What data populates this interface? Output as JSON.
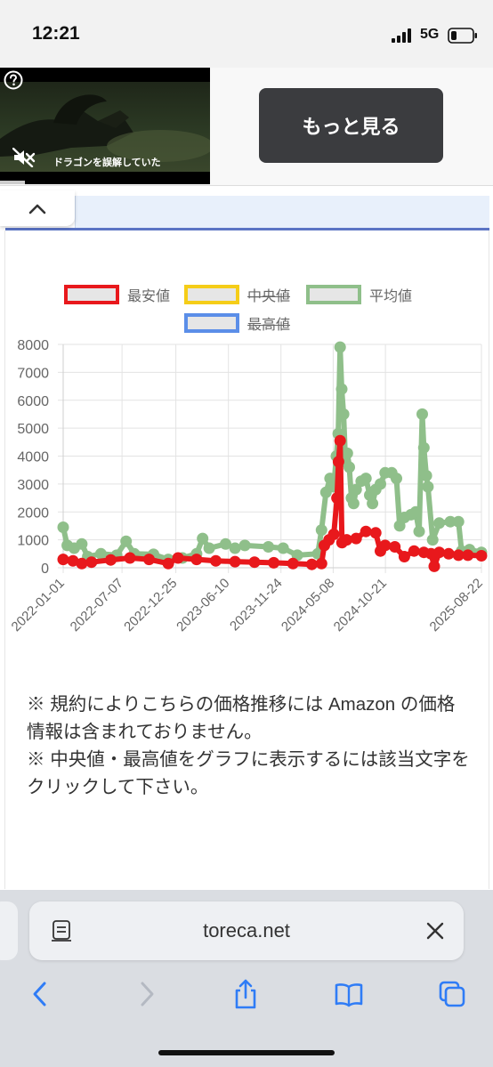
{
  "status_bar": {
    "time": "12:21",
    "network": "5G"
  },
  "ad": {
    "caption": "ドラゴンを誤解していた",
    "more_button": "もっと見る"
  },
  "legend": [
    {
      "label": "最安値",
      "color": "#e8181c",
      "hidden": false
    },
    {
      "label": "中央値",
      "color": "#f5cd18",
      "hidden": true
    },
    {
      "label": "平均値",
      "color": "#8fbf8a",
      "hidden": false
    },
    {
      "label": "最高値",
      "color": "#5b8ee8",
      "hidden": true
    }
  ],
  "chart_data": {
    "type": "line",
    "x_ticks": [
      "2022-01-01",
      "2022-07-07",
      "2022-12-25",
      "2023-06-10",
      "2023-11-24",
      "2024-05-08",
      "2024-10-21",
      "2025-08-22"
    ],
    "y_ticks": [
      0,
      1000,
      2000,
      3000,
      4000,
      5000,
      6000,
      7000,
      8000
    ],
    "ylim": [
      0,
      8000
    ],
    "grid": true,
    "series": [
      {
        "name": "平均値",
        "color": "#8fbf8a",
        "points": [
          [
            "2022-01-01",
            1450
          ],
          [
            "2022-01-14",
            800
          ],
          [
            "2022-02-05",
            700
          ],
          [
            "2022-03-01",
            850
          ],
          [
            "2022-03-20",
            400
          ],
          [
            "2022-05-01",
            500
          ],
          [
            "2022-06-20",
            450
          ],
          [
            "2022-07-20",
            950
          ],
          [
            "2022-08-15",
            500
          ],
          [
            "2022-10-15",
            480
          ],
          [
            "2022-12-01",
            300
          ],
          [
            "2023-01-15",
            350
          ],
          [
            "2023-03-01",
            500
          ],
          [
            "2023-03-20",
            1050
          ],
          [
            "2023-04-10",
            700
          ],
          [
            "2023-06-01",
            850
          ],
          [
            "2023-07-01",
            700
          ],
          [
            "2023-08-01",
            800
          ],
          [
            "2023-10-15",
            750
          ],
          [
            "2023-12-01",
            700
          ],
          [
            "2024-01-15",
            450
          ],
          [
            "2024-03-20",
            500
          ],
          [
            "2024-04-01",
            1350
          ],
          [
            "2024-04-15",
            2700
          ],
          [
            "2024-04-28",
            3200
          ],
          [
            "2024-05-10",
            2900
          ],
          [
            "2024-05-18",
            4000
          ],
          [
            "2024-05-24",
            4800
          ],
          [
            "2024-05-30",
            7900
          ],
          [
            "2024-06-04",
            6400
          ],
          [
            "2024-06-10",
            5500
          ],
          [
            "2024-06-16",
            3800
          ],
          [
            "2024-06-22",
            4100
          ],
          [
            "2024-06-28",
            3600
          ],
          [
            "2024-07-05",
            2500
          ],
          [
            "2024-07-12",
            2300
          ],
          [
            "2024-07-20",
            2800
          ],
          [
            "2024-08-05",
            3100
          ],
          [
            "2024-08-20",
            3200
          ],
          [
            "2024-09-01",
            2600
          ],
          [
            "2024-09-10",
            2300
          ],
          [
            "2024-09-20",
            2800
          ],
          [
            "2024-10-05",
            3000
          ],
          [
            "2024-10-20",
            3400
          ],
          [
            "2024-11-10",
            3400
          ],
          [
            "2024-11-25",
            3200
          ],
          [
            "2024-12-05",
            1500
          ],
          [
            "2024-12-20",
            1800
          ],
          [
            "2025-01-10",
            1900
          ],
          [
            "2025-01-25",
            2000
          ],
          [
            "2025-02-05",
            1300
          ],
          [
            "2025-02-15",
            5500
          ],
          [
            "2025-02-20",
            4300
          ],
          [
            "2025-02-28",
            3300
          ],
          [
            "2025-03-05",
            2900
          ],
          [
            "2025-03-20",
            1000
          ],
          [
            "2025-04-10",
            1600
          ],
          [
            "2025-05-15",
            1650
          ],
          [
            "2025-06-10",
            1650
          ],
          [
            "2025-06-20",
            600
          ],
          [
            "2025-07-15",
            650
          ],
          [
            "2025-08-22",
            550
          ]
        ]
      },
      {
        "name": "最安値",
        "color": "#e8181c",
        "points": [
          [
            "2022-01-01",
            300
          ],
          [
            "2022-02-01",
            250
          ],
          [
            "2022-03-01",
            150
          ],
          [
            "2022-04-01",
            200
          ],
          [
            "2022-06-01",
            280
          ],
          [
            "2022-08-01",
            350
          ],
          [
            "2022-10-01",
            300
          ],
          [
            "2022-12-01",
            150
          ],
          [
            "2023-01-01",
            350
          ],
          [
            "2023-03-01",
            300
          ],
          [
            "2023-05-01",
            250
          ],
          [
            "2023-07-01",
            220
          ],
          [
            "2023-09-01",
            200
          ],
          [
            "2023-11-01",
            180
          ],
          [
            "2024-01-01",
            150
          ],
          [
            "2024-03-01",
            120
          ],
          [
            "2024-04-01",
            150
          ],
          [
            "2024-04-10",
            800
          ],
          [
            "2024-04-25",
            1000
          ],
          [
            "2024-05-10",
            1200
          ],
          [
            "2024-05-20",
            2500
          ],
          [
            "2024-05-25",
            3800
          ],
          [
            "2024-05-30",
            4550
          ],
          [
            "2024-06-05",
            900
          ],
          [
            "2024-06-20",
            1000
          ],
          [
            "2024-07-20",
            1050
          ],
          [
            "2024-08-20",
            1300
          ],
          [
            "2024-09-20",
            1250
          ],
          [
            "2024-10-05",
            600
          ],
          [
            "2024-10-20",
            800
          ],
          [
            "2024-11-20",
            750
          ],
          [
            "2024-12-20",
            400
          ],
          [
            "2025-01-20",
            600
          ],
          [
            "2025-02-20",
            550
          ],
          [
            "2025-03-15",
            500
          ],
          [
            "2025-03-25",
            50
          ],
          [
            "2025-04-10",
            550
          ],
          [
            "2025-05-10",
            500
          ],
          [
            "2025-06-10",
            450
          ],
          [
            "2025-07-10",
            450
          ],
          [
            "2025-08-22",
            430
          ]
        ]
      }
    ]
  },
  "notes": [
    "※ 規約によりこちらの価格推移には Amazon の価格情報は含まれておりません。",
    "※ 中央値・最高値をグラフに表示するには該当文字をクリックして下さい。"
  ],
  "safari": {
    "url": "toreca.net"
  }
}
